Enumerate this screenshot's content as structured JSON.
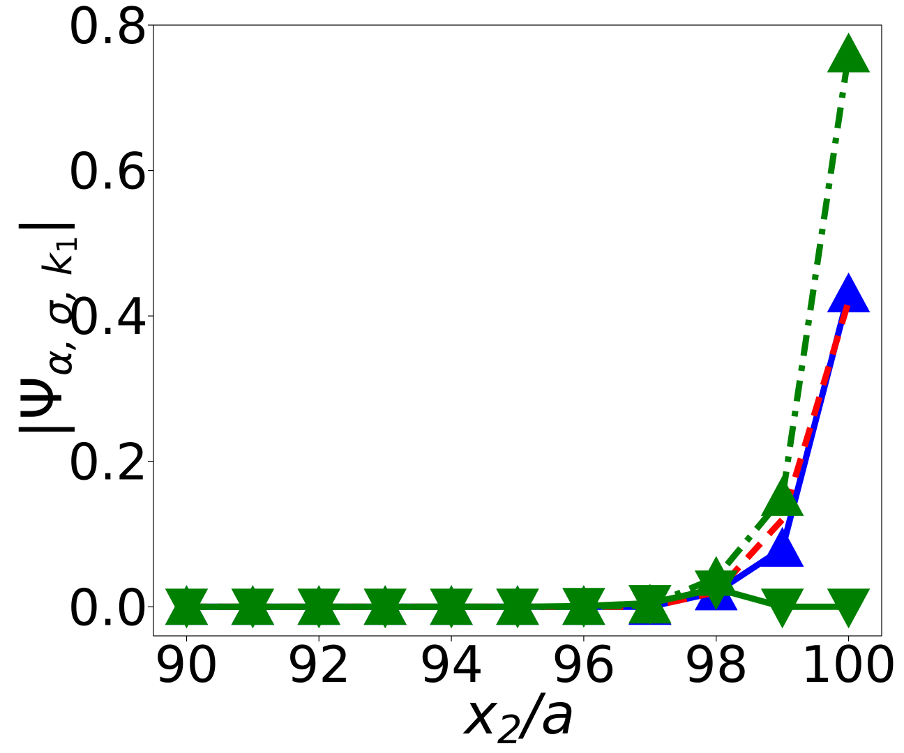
{
  "chart_data": {
    "type": "line",
    "xlabel_main": "x",
    "xlabel_sub": "2",
    "xlabel_rest": "/a",
    "ylabel_main": "|Ψ",
    "ylabel_sub": "α, σ, k",
    "ylabel_subsub": "1",
    "ylabel_close": "|",
    "xlim": [
      89.5,
      100.5
    ],
    "ylim": [
      -0.04,
      0.8
    ],
    "xticks": [
      90,
      92,
      94,
      96,
      98,
      100
    ],
    "yticks": [
      0.0,
      0.2,
      0.4,
      0.6,
      0.8
    ],
    "ytick_labels": [
      "0.0",
      "0.2",
      "0.4",
      "0.6",
      "0.8"
    ],
    "grid": false,
    "x": [
      90,
      91,
      92,
      93,
      94,
      95,
      96,
      97,
      98,
      99,
      100
    ],
    "series": [
      {
        "color": "#0000ff",
        "dash": "solid",
        "marker": "triangle-up",
        "values": [
          0.0,
          0.0,
          0.0,
          0.0,
          0.0,
          0.0,
          0.0,
          0.0,
          0.02,
          0.08,
          0.43
        ]
      },
      {
        "color": "#ff0000",
        "dash": "dashed",
        "marker": "none",
        "values": [
          0.0,
          0.0,
          0.0,
          0.0,
          0.0,
          0.0,
          0.0,
          0.0,
          0.02,
          0.12,
          0.42
        ]
      },
      {
        "color": "#008000",
        "dash": "dashdot",
        "marker": "triangle-up",
        "values": [
          0.0,
          0.0,
          0.0,
          0.0,
          0.0,
          0.0,
          0.0,
          0.002,
          0.04,
          0.15,
          0.76
        ]
      },
      {
        "color": "#008000",
        "dash": "solid",
        "marker": "triangle-down",
        "values": [
          0.0,
          0.0,
          0.0,
          0.0,
          0.0,
          0.0,
          0.001,
          0.005,
          0.025,
          0.0,
          0.0
        ]
      }
    ]
  }
}
